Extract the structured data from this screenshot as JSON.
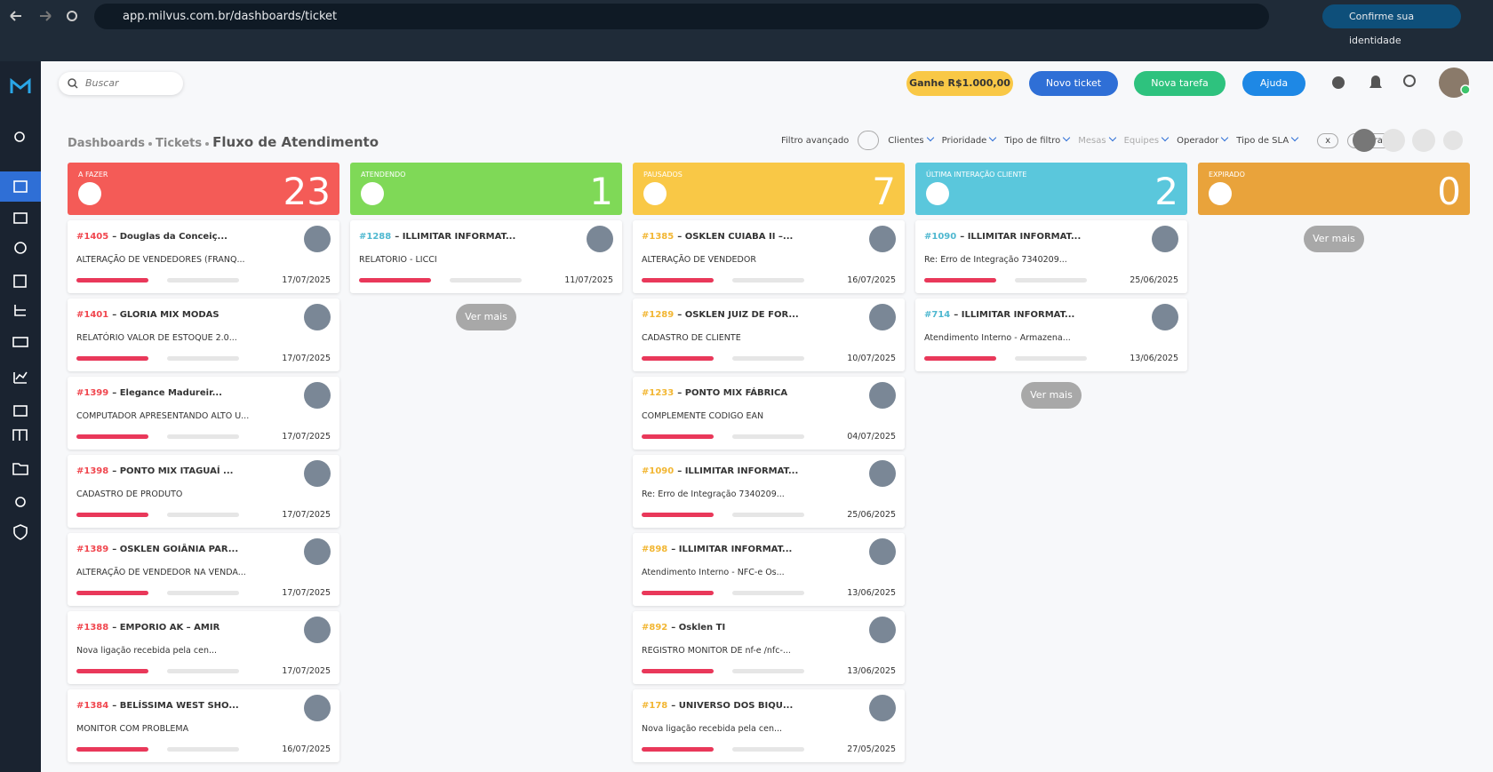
{
  "browser": {
    "url": "app.milvus.com.br/dashboards/ticket",
    "profile": "Confirme sua identidade"
  },
  "topbar": {
    "search": "Buscar",
    "buttons": [
      "Ganhe R$1.000,00",
      "Novo ticket",
      "Nova tarefa",
      "Ajuda"
    ]
  },
  "breadcrumb": [
    "Dashboards",
    "Tickets",
    "Fluxo de Atendimento"
  ],
  "filters": {
    "advanced": "Filtro avançado",
    "dropdowns": [
      "Clientes",
      "Prioridade",
      "Tipo de filtro",
      "Mesas",
      "Equipes",
      "Operador",
      "Tipo de SLA"
    ],
    "clear": "x",
    "apply": "Filtrar"
  },
  "columns": [
    {
      "title": "A FAZER",
      "count": 23,
      "color": "#f45b57",
      "accent": "#f0464e",
      "cards": [
        {
          "id": "#1405",
          "name": "– Douglas da Conceiç...",
          "desc": "ALTERAÇÃO DE VENDEDORES (FRANQ...",
          "date": "17/07/2025"
        },
        {
          "id": "#1401",
          "name": "– GLORIA MIX MODAS",
          "desc": "RELATÓRIO VALOR DE ESTOQUE 2.0...",
          "date": "17/07/2025"
        },
        {
          "id": "#1399",
          "name": "– Elegance Madureir...",
          "desc": "COMPUTADOR APRESENTANDO ALTO U...",
          "date": "17/07/2025"
        },
        {
          "id": "#1398",
          "name": "– PONTO MIX ITAGUAÍ ...",
          "desc": "CADASTRO DE PRODUTO",
          "date": "17/07/2025"
        },
        {
          "id": "#1389",
          "name": "– OSKLEN GOIÂNIA PAR...",
          "desc": "ALTERAÇÃO DE VENDEDOR NA VENDA...",
          "date": "17/07/2025"
        },
        {
          "id": "#1388",
          "name": "– EMPORIO AK – AMIR",
          "desc": "Nova ligação recebida pela cen...",
          "date": "17/07/2025"
        },
        {
          "id": "#1384",
          "name": "– BELÍSSIMA WEST SHO...",
          "desc": "MONITOR COM PROBLEMA",
          "date": "16/07/2025"
        }
      ]
    },
    {
      "title": "ATENDENDO",
      "count": 1,
      "color": "#7fd957",
      "accent": "#4fb8d0",
      "more": "Ver mais",
      "cards": [
        {
          "id": "#1288",
          "name": "– ILLIMITAR INFORMAT...",
          "desc": "RELATORIO - LICCI",
          "date": "11/07/2025"
        }
      ]
    },
    {
      "title": "PAUSADOS",
      "count": 7,
      "color": "#f9c846",
      "accent": "#f2b632",
      "cards": [
        {
          "id": "#1385",
          "name": "– OSKLEN CUIABA II –...",
          "desc": "ALTERAÇÃO DE VENDEDOR",
          "date": "16/07/2025"
        },
        {
          "id": "#1289",
          "name": "– OSKLEN JUIZ DE FOR...",
          "desc": "CADASTRO DE CLIENTE",
          "date": "10/07/2025"
        },
        {
          "id": "#1233",
          "name": "– PONTO MIX FÁBRICA",
          "desc": "COMPLEMENTE CODIGO EAN",
          "date": "04/07/2025"
        },
        {
          "id": "#1090",
          "name": "– ILLIMITAR INFORMAT...",
          "desc": "Re: Erro de Integração 7340209...",
          "date": "25/06/2025"
        },
        {
          "id": "#898",
          "name": "– ILLIMITAR INFORMAT...",
          "desc": "Atendimento Interno - NFC-e Os...",
          "date": "13/06/2025"
        },
        {
          "id": "#892",
          "name": "– Osklen TI",
          "desc": "REGISTRO MONITOR DE nf-e /nfc-...",
          "date": "13/06/2025"
        },
        {
          "id": "#178",
          "name": "– UNIVERSO DOS BIQU...",
          "desc": "Nova ligação recebida pela cen...",
          "date": "27/05/2025"
        }
      ]
    },
    {
      "title": "ÚLTIMA INTERAÇÃO CLIENTE",
      "count": 2,
      "color": "#5ac7dc",
      "accent": "#4fb8d0",
      "more": "Ver mais",
      "cards": [
        {
          "id": "#1090",
          "name": "– ILLIMITAR INFORMAT...",
          "desc": "Re: Erro de Integração 7340209...",
          "date": "25/06/2025"
        },
        {
          "id": "#714",
          "name": "– ILLIMITAR INFORMAT...",
          "desc": "Atendimento Interno - Armazena...",
          "date": "13/06/2025"
        }
      ]
    },
    {
      "title": "EXPIRADO",
      "count": 0,
      "color": "#e9a33b",
      "accent": "#e9a33b",
      "more": "Ver mais",
      "cards": []
    }
  ]
}
